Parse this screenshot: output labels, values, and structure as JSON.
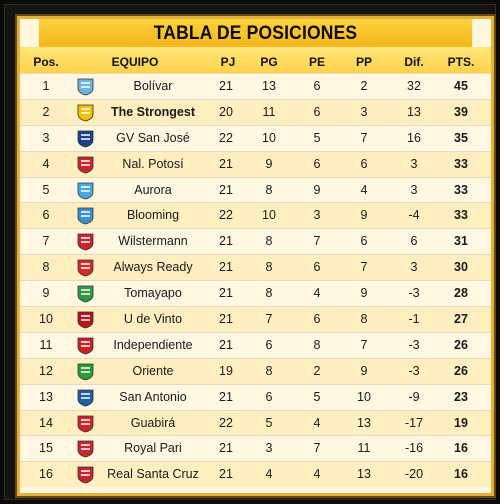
{
  "title": "TABLA DE POSICIONES",
  "headers": {
    "pos": "Pos.",
    "team": "EQUIPO",
    "pj": "PJ",
    "pg": "PG",
    "pe": "PE",
    "pp": "PP",
    "dif": "Dif.",
    "pts": "PTS."
  },
  "rows": [
    {
      "pos": "1",
      "team": "Bolívar",
      "pj": "21",
      "pg": "13",
      "pe": "6",
      "pp": "2",
      "dif": "32",
      "pts": "45",
      "icon": "bolivar-crest-icon",
      "color": "#6fb3e3"
    },
    {
      "pos": "2",
      "team": "The Strongest",
      "pj": "20",
      "pg": "11",
      "pe": "6",
      "pp": "3",
      "dif": "13",
      "pts": "39",
      "icon": "the-strongest-crest-icon",
      "color": "#f2c200"
    },
    {
      "pos": "3",
      "team": "GV San José",
      "pj": "22",
      "pg": "10",
      "pe": "5",
      "pp": "7",
      "dif": "16",
      "pts": "35",
      "icon": "gv-san-jose-crest-icon",
      "color": "#1d3f8f"
    },
    {
      "pos": "4",
      "team": "Nal. Potosí",
      "pj": "21",
      "pg": "9",
      "pe": "6",
      "pp": "6",
      "dif": "3",
      "pts": "33",
      "icon": "nacional-potosi-crest-icon",
      "color": "#c9252c"
    },
    {
      "pos": "5",
      "team": "Aurora",
      "pj": "21",
      "pg": "8",
      "pe": "9",
      "pp": "4",
      "dif": "3",
      "pts": "33",
      "icon": "aurora-crest-icon",
      "color": "#4aa8e0"
    },
    {
      "pos": "6",
      "team": "Blooming",
      "pj": "22",
      "pg": "10",
      "pe": "3",
      "pp": "9",
      "dif": "-4",
      "pts": "33",
      "icon": "blooming-crest-icon",
      "color": "#3b8fd6"
    },
    {
      "pos": "7",
      "team": "Wilstermann",
      "pj": "21",
      "pg": "8",
      "pe": "7",
      "pp": "6",
      "dif": "6",
      "pts": "31",
      "icon": "wilstermann-crest-icon",
      "color": "#c9252c"
    },
    {
      "pos": "8",
      "team": "Always Ready",
      "pj": "21",
      "pg": "8",
      "pe": "6",
      "pp": "7",
      "dif": "3",
      "pts": "30",
      "icon": "always-ready-crest-icon",
      "color": "#d22a2a"
    },
    {
      "pos": "9",
      "team": "Tomayapo",
      "pj": "21",
      "pg": "8",
      "pe": "4",
      "pp": "9",
      "dif": "-3",
      "pts": "28",
      "icon": "tomayapo-crest-icon",
      "color": "#2f9a44"
    },
    {
      "pos": "10",
      "team": "U de Vinto",
      "pj": "21",
      "pg": "7",
      "pe": "6",
      "pp": "8",
      "dif": "-1",
      "pts": "27",
      "icon": "u-de-vinto-crest-icon",
      "color": "#b5121b"
    },
    {
      "pos": "11",
      "team": "Independiente",
      "pj": "21",
      "pg": "6",
      "pe": "8",
      "pp": "7",
      "dif": "-3",
      "pts": "26",
      "icon": "independiente-crest-icon",
      "color": "#d11f2a"
    },
    {
      "pos": "12",
      "team": "Oriente",
      "pj": "19",
      "pg": "8",
      "pe": "2",
      "pp": "9",
      "dif": "-3",
      "pts": "26",
      "icon": "oriente-crest-icon",
      "color": "#2c9a3b"
    },
    {
      "pos": "13",
      "team": "San Antonio",
      "pj": "21",
      "pg": "6",
      "pe": "5",
      "pp": "10",
      "dif": "-9",
      "pts": "23",
      "icon": "san-antonio-crest-icon",
      "color": "#1f5e9e"
    },
    {
      "pos": "14",
      "team": "Guabirá",
      "pj": "22",
      "pg": "5",
      "pe": "4",
      "pp": "13",
      "dif": "-17",
      "pts": "19",
      "icon": "guabira-crest-icon",
      "color": "#d2232a"
    },
    {
      "pos": "15",
      "team": "Royal Pari",
      "pj": "21",
      "pg": "3",
      "pe": "7",
      "pp": "11",
      "dif": "-16",
      "pts": "16",
      "icon": "royal-pari-crest-icon",
      "color": "#c8262d"
    },
    {
      "pos": "16",
      "team": "Real Santa Cruz",
      "pj": "21",
      "pg": "4",
      "pe": "4",
      "pp": "13",
      "dif": "-20",
      "pts": "16",
      "icon": "real-santa-cruz-crest-icon",
      "color": "#c2262e"
    }
  ]
}
